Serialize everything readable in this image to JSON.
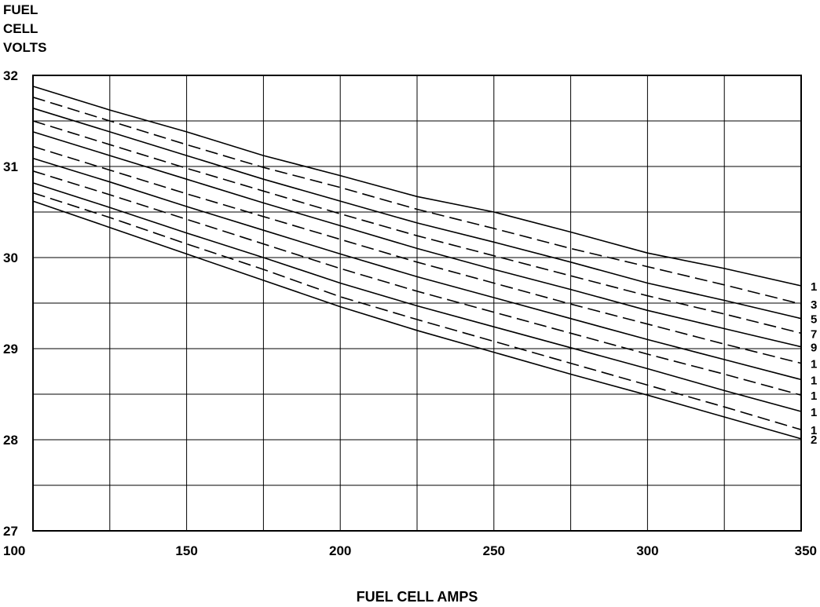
{
  "chart_data": {
    "type": "line",
    "title": "",
    "ylabel": "FUEL CELL VOLTS",
    "ylabel_lines": [
      "FUEL",
      "CELL",
      "VOLTS"
    ],
    "xlabel": "FUEL CELL AMPS",
    "xlim": [
      100,
      350
    ],
    "ylim": [
      27,
      32
    ],
    "x_ticks": [
      100,
      150,
      200,
      250,
      300,
      350
    ],
    "x_tick_labels": [
      "100",
      "150",
      "200",
      "250",
      "300",
      "350"
    ],
    "y_ticks": [
      27,
      28,
      29,
      30,
      31,
      32
    ],
    "y_tick_labels": [
      "27",
      "28",
      "29",
      "30",
      "31",
      "32"
    ],
    "grid": true,
    "x_grid_step": 25,
    "y_grid_step": 0.5,
    "x": [
      100,
      125,
      150,
      175,
      200,
      225,
      250,
      275,
      300,
      325,
      350
    ],
    "series": [
      {
        "line_style": "solid",
        "end_label": "1",
        "values": [
          31.88,
          31.62,
          31.38,
          31.12,
          30.9,
          30.67,
          30.5,
          30.28,
          30.05,
          29.88,
          29.69
        ]
      },
      {
        "line_style": "dashed",
        "end_label": "3",
        "values": [
          31.76,
          31.5,
          31.24,
          30.99,
          30.77,
          30.53,
          30.32,
          30.1,
          29.9,
          29.7,
          29.49
        ]
      },
      {
        "line_style": "solid",
        "end_label": "5",
        "values": [
          31.64,
          31.38,
          31.12,
          30.86,
          30.62,
          30.38,
          30.17,
          29.95,
          29.72,
          29.53,
          29.33
        ]
      },
      {
        "line_style": "dashed",
        "end_label": "7",
        "values": [
          31.5,
          31.24,
          30.98,
          30.73,
          30.48,
          30.24,
          30.02,
          29.8,
          29.58,
          29.38,
          29.17
        ]
      },
      {
        "line_style": "solid",
        "end_label": "9",
        "values": [
          31.38,
          31.12,
          30.86,
          30.6,
          30.35,
          30.1,
          29.87,
          29.65,
          29.42,
          29.22,
          29.02
        ]
      },
      {
        "line_style": "dashed",
        "end_label": "1",
        "values": [
          31.22,
          30.96,
          30.7,
          30.45,
          30.2,
          29.95,
          29.72,
          29.49,
          29.27,
          29.05,
          28.84
        ]
      },
      {
        "line_style": "solid",
        "end_label": "1",
        "values": [
          31.09,
          30.83,
          30.56,
          30.3,
          30.04,
          29.79,
          29.56,
          29.33,
          29.1,
          28.88,
          28.66
        ]
      },
      {
        "line_style": "dashed",
        "end_label": "1",
        "values": [
          30.95,
          30.69,
          30.42,
          30.15,
          29.88,
          29.63,
          29.4,
          29.17,
          28.94,
          28.72,
          28.49
        ]
      },
      {
        "line_style": "solid",
        "end_label": "1",
        "values": [
          30.82,
          30.55,
          30.27,
          30.0,
          29.72,
          29.47,
          29.24,
          29.01,
          28.78,
          28.54,
          28.31
        ]
      },
      {
        "line_style": "dashed",
        "end_label": "1",
        "values": [
          30.71,
          30.44,
          30.15,
          29.87,
          29.57,
          29.32,
          29.08,
          28.84,
          28.6,
          28.36,
          28.11
        ]
      },
      {
        "line_style": "solid",
        "end_label": "2",
        "values": [
          30.62,
          30.33,
          30.04,
          29.75,
          29.46,
          29.2,
          28.96,
          28.72,
          28.49,
          28.25,
          28.01
        ]
      }
    ]
  }
}
